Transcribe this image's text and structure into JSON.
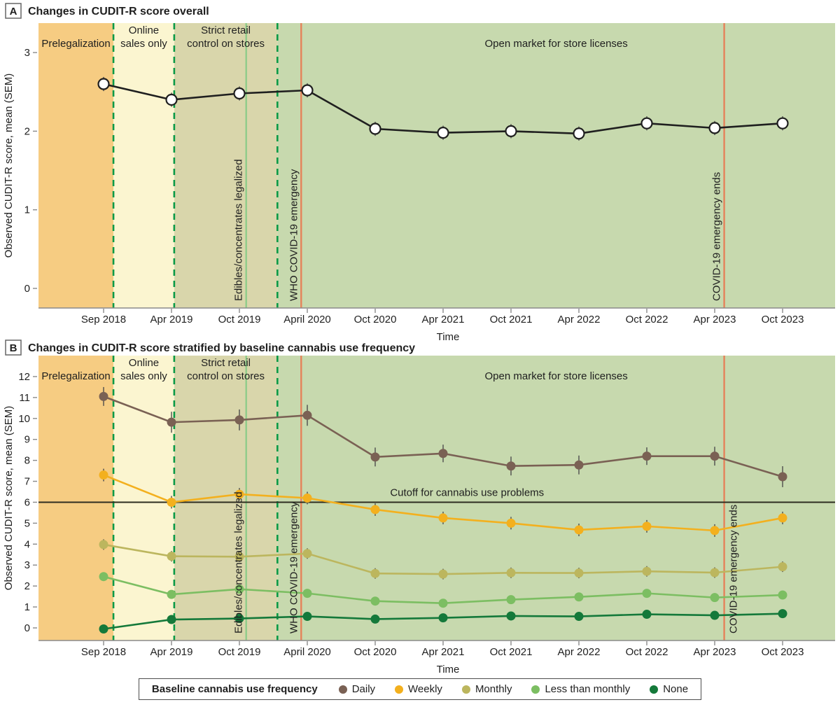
{
  "figure": {
    "colors": {
      "axis": "#8a8a8a",
      "text": "#1f1f1f",
      "error_bar": "#4d4d4d",
      "background": "#ffffff",
      "legend_border": "#4d4d4d",
      "cutoff_line": "#2e2d20"
    },
    "legend": {
      "title": "Baseline cannabis use frequency",
      "items": [
        {
          "label": "Daily",
          "color": "#7a6154"
        },
        {
          "label": "Weekly",
          "color": "#f3b01e"
        },
        {
          "label": "Monthly",
          "color": "#bcb65e"
        },
        {
          "label": "Less than monthly",
          "color": "#7cbe62"
        },
        {
          "label": "None",
          "color": "#14793a"
        }
      ]
    }
  },
  "chart_data": [
    {
      "type": "line",
      "panel_letter": "A",
      "title": "Changes in CUDIT-R score overall",
      "xlabel": "Time",
      "ylabel": "Observed CUDIT-R score, mean (SEM)",
      "categories": [
        "Sep 2018",
        "Apr 2019",
        "Oct 2019",
        "April 2020",
        "Oct 2020",
        "Apr 2021",
        "Oct 2021",
        "Apr 2022",
        "Oct 2022",
        "Apr 2023",
        "Oct 2023"
      ],
      "yticks": [
        0,
        1,
        2,
        3
      ],
      "ylim": [
        -0.25,
        3.35
      ],
      "grid": false,
      "zones": [
        {
          "label_lines": [
            "Prelegalization"
          ],
          "color": "#f6cc82",
          "from_index": null,
          "to_index": 0.145
        },
        {
          "label_lines": [
            "Online",
            "sales only"
          ],
          "color": "#fbf5d0",
          "from_index": 0.145,
          "to_index": 1.04
        },
        {
          "label_lines": [
            "Strict retail",
            "control on stores"
          ],
          "color": "#d9d6ab",
          "from_index": 1.04,
          "to_index": 2.56
        },
        {
          "label_lines": [
            "Open market for store licenses"
          ],
          "color": "#c7d9ae",
          "from_index": 2.56,
          "to_index": null
        }
      ],
      "event_lines": [
        {
          "x_index": 0.145,
          "style": "dashed",
          "color": "#0b9a47",
          "label": "",
          "label_side": ""
        },
        {
          "x_index": 1.04,
          "style": "dashed",
          "color": "#0b9a47",
          "label": "",
          "label_side": ""
        },
        {
          "x_index": 2.1,
          "style": "solid",
          "color": "#8fcc8a",
          "label": "Edibles/concentrates legalized",
          "label_side": "left"
        },
        {
          "x_index": 2.56,
          "style": "dashed",
          "color": "#0b9a47",
          "label": "",
          "label_side": ""
        },
        {
          "x_index": 2.91,
          "style": "solid",
          "color": "#e5825a",
          "label": "WHO COVID-19 emergency",
          "label_side": "left"
        },
        {
          "x_index": 9.14,
          "style": "solid",
          "color": "#e5825a",
          "label": "COVID-19 emergency ends",
          "label_side": "left"
        }
      ],
      "series": [
        {
          "name": "Overall",
          "color": "#1f1f1f",
          "marker_fill": "#ffffff",
          "values": [
            2.6,
            2.4,
            2.48,
            2.52,
            2.03,
            1.98,
            2.0,
            1.97,
            2.1,
            2.04,
            2.1
          ],
          "sem": [
            0.09,
            0.09,
            0.09,
            0.09,
            0.09,
            0.09,
            0.09,
            0.09,
            0.09,
            0.09,
            0.09
          ]
        }
      ]
    },
    {
      "type": "line",
      "panel_letter": "B",
      "title": "Changes in CUDIT-R score stratified by baseline cannabis use frequency",
      "xlabel": "Time",
      "ylabel": "Observed CUDIT-R score, mean (SEM)",
      "categories": [
        "Sep 2018",
        "Apr 2019",
        "Oct 2019",
        "April 2020",
        "Oct 2020",
        "Apr 2021",
        "Oct 2021",
        "Apr 2022",
        "Oct 2022",
        "Apr 2023",
        "Oct 2023"
      ],
      "yticks": [
        0,
        1,
        2,
        3,
        4,
        5,
        6,
        7,
        8,
        9,
        10,
        11,
        12
      ],
      "ylim": [
        -0.6,
        13.0
      ],
      "grid": false,
      "cutoff": {
        "value": 6,
        "label": "Cutoff for cannabis use problems",
        "label_x_index": 4.22
      },
      "zones": [
        {
          "label_lines": [
            "Prelegalization"
          ],
          "color": "#f6cc82",
          "from_index": null,
          "to_index": 0.145
        },
        {
          "label_lines": [
            "Online",
            "sales only"
          ],
          "color": "#fbf5d0",
          "from_index": 0.145,
          "to_index": 1.04
        },
        {
          "label_lines": [
            "Strict retail",
            "control on stores"
          ],
          "color": "#d9d6ab",
          "from_index": 1.04,
          "to_index": 2.56
        },
        {
          "label_lines": [
            "Open market for store licenses"
          ],
          "color": "#c7d9ae",
          "from_index": 2.56,
          "to_index": null
        }
      ],
      "event_lines": [
        {
          "x_index": 0.145,
          "style": "dashed",
          "color": "#0b9a47",
          "label": "",
          "label_side": ""
        },
        {
          "x_index": 1.04,
          "style": "dashed",
          "color": "#0b9a47",
          "label": "",
          "label_side": ""
        },
        {
          "x_index": 2.1,
          "style": "solid",
          "color": "#8fcc8a",
          "label": "Edibles/concentrates legalized",
          "label_side": "left"
        },
        {
          "x_index": 2.56,
          "style": "dashed",
          "color": "#0b9a47",
          "label": "",
          "label_side": ""
        },
        {
          "x_index": 2.91,
          "style": "solid",
          "color": "#e5825a",
          "label": "WHO COVID-19 emergency",
          "label_side": "left"
        },
        {
          "x_index": 9.14,
          "style": "solid",
          "color": "#e5825a",
          "label": "COVID-19 emergency ends",
          "label_side": "right"
        }
      ],
      "series": [
        {
          "name": "Daily",
          "color": "#7a6154",
          "values": [
            11.05,
            9.82,
            9.93,
            10.15,
            8.16,
            8.33,
            7.73,
            7.78,
            8.2,
            8.2,
            7.22
          ],
          "sem": [
            0.45,
            0.5,
            0.5,
            0.5,
            0.45,
            0.42,
            0.45,
            0.45,
            0.42,
            0.45,
            0.5
          ]
        },
        {
          "name": "Weekly",
          "color": "#f3b01e",
          "values": [
            7.3,
            6.0,
            6.38,
            6.2,
            5.65,
            5.25,
            5.0,
            4.68,
            4.85,
            4.65,
            5.25
          ],
          "sem": [
            0.3,
            0.3,
            0.3,
            0.3,
            0.3,
            0.3,
            0.3,
            0.3,
            0.3,
            0.3,
            0.3
          ]
        },
        {
          "name": "Monthly",
          "color": "#bcb65e",
          "values": [
            3.98,
            3.42,
            3.4,
            3.55,
            2.6,
            2.57,
            2.63,
            2.62,
            2.7,
            2.64,
            2.92
          ],
          "sem": [
            0.25,
            0.25,
            0.25,
            0.25,
            0.25,
            0.25,
            0.25,
            0.25,
            0.25,
            0.25,
            0.25
          ]
        },
        {
          "name": "Less than monthly",
          "color": "#7cbe62",
          "values": [
            2.45,
            1.6,
            1.85,
            1.65,
            1.28,
            1.18,
            1.35,
            1.48,
            1.65,
            1.45,
            1.57
          ],
          "sem": [
            0.15,
            0.15,
            0.15,
            0.15,
            0.15,
            0.15,
            0.15,
            0.15,
            0.15,
            0.15,
            0.15
          ]
        },
        {
          "name": "None",
          "color": "#14793a",
          "values": [
            -0.05,
            0.4,
            0.45,
            0.55,
            0.42,
            0.48,
            0.57,
            0.55,
            0.65,
            0.6,
            0.68
          ],
          "sem": [
            0.08,
            0.08,
            0.08,
            0.08,
            0.08,
            0.08,
            0.08,
            0.08,
            0.08,
            0.08,
            0.08
          ]
        }
      ]
    }
  ]
}
